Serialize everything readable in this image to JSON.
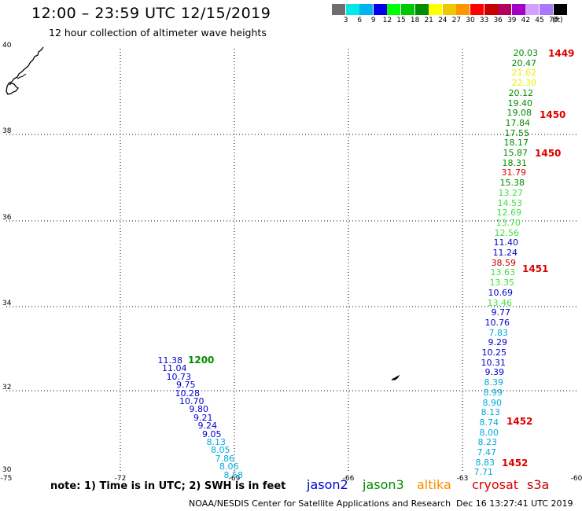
{
  "header": {
    "title": "12:00 – 23:59 UTC 12/15/2019",
    "subtitle": "12 hour collection of altimeter wave heights"
  },
  "colorbar": {
    "labels": [
      "3",
      "6",
      "9",
      "12",
      "15",
      "18",
      "21",
      "24",
      "27",
      "30",
      "33",
      "36",
      "39",
      "42",
      "45",
      "70"
    ],
    "unit": "(ft)",
    "colors": [
      "#6e6e6e",
      "#00e8e8",
      "#00b4f0",
      "#0000e8",
      "#00ff00",
      "#00c800",
      "#008c00",
      "#ffff00",
      "#f0c800",
      "#ff9600",
      "#ff0000",
      "#c80000",
      "#b4005a",
      "#a000c8",
      "#d2a0ff",
      "#aa78ff",
      "#000000"
    ]
  },
  "axes": {
    "lon_ticks": [
      "-75",
      "-72",
      "-69",
      "-66",
      "-63",
      "-60"
    ],
    "lat_ticks": [
      "40",
      "38",
      "36",
      "34",
      "32",
      "30"
    ]
  },
  "series_colors": {
    "jason2": "#0000cc",
    "jason3": "#008c00",
    "altika": "#ff8c00",
    "cryosat": "#dd0000",
    "s3a": "#c00000",
    "cyan": "#00aadd",
    "lime": "#44dd44",
    "yellow": "#eeee00"
  },
  "west_track": {
    "time_label": "1200",
    "values": [
      {
        "v": "11.38",
        "c": "jason2"
      },
      {
        "v": "11.04",
        "c": "jason2"
      },
      {
        "v": "10.73",
        "c": "jason2"
      },
      {
        "v": "9.75",
        "c": "jason2"
      },
      {
        "v": "10.28",
        "c": "jason2"
      },
      {
        "v": "10.70",
        "c": "jason2"
      },
      {
        "v": "9.80",
        "c": "jason2"
      },
      {
        "v": "9.21",
        "c": "jason2"
      },
      {
        "v": "9.24",
        "c": "jason2"
      },
      {
        "v": "9.05",
        "c": "jason2"
      },
      {
        "v": "8.13",
        "c": "cyan"
      },
      {
        "v": "8.05",
        "c": "cyan"
      },
      {
        "v": "7.86",
        "c": "cyan"
      },
      {
        "v": "8.06",
        "c": "cyan"
      },
      {
        "v": "8.58",
        "c": "cyan"
      }
    ]
  },
  "east_track": {
    "values": [
      {
        "v": "20.03",
        "c": "jason3"
      },
      {
        "v": "20.47",
        "c": "jason3"
      },
      {
        "v": "21.62",
        "c": "yellow"
      },
      {
        "v": "22.30",
        "c": "yellow"
      },
      {
        "v": "20.12",
        "c": "jason3"
      },
      {
        "v": "19.40",
        "c": "jason3"
      },
      {
        "v": "19.08",
        "c": "jason3"
      },
      {
        "v": "17.84",
        "c": "jason3"
      },
      {
        "v": "17.55",
        "c": "jason3"
      },
      {
        "v": "18.17",
        "c": "jason3"
      },
      {
        "v": "15.87",
        "c": "jason3"
      },
      {
        "v": "18.31",
        "c": "jason3"
      },
      {
        "v": "31.79",
        "c": "cryosat"
      },
      {
        "v": "15.38",
        "c": "jason3"
      },
      {
        "v": "13.27",
        "c": "lime"
      },
      {
        "v": "14.53",
        "c": "lime"
      },
      {
        "v": "12.69",
        "c": "lime"
      },
      {
        "v": "13.70",
        "c": "lime"
      },
      {
        "v": "12.56",
        "c": "lime"
      },
      {
        "v": "11.40",
        "c": "jason2"
      },
      {
        "v": "11.24",
        "c": "jason2"
      },
      {
        "v": "38.59",
        "c": "s3a"
      },
      {
        "v": "13.63",
        "c": "lime"
      },
      {
        "v": "13.35",
        "c": "lime"
      },
      {
        "v": "10.69",
        "c": "jason2"
      },
      {
        "v": "13.46",
        "c": "lime"
      },
      {
        "v": "9.77",
        "c": "jason2"
      },
      {
        "v": "10.76",
        "c": "jason2"
      },
      {
        "v": "7.83",
        "c": "cyan"
      },
      {
        "v": "9.29",
        "c": "jason2"
      },
      {
        "v": "10.25",
        "c": "jason2"
      },
      {
        "v": "10.31",
        "c": "jason2"
      },
      {
        "v": "9.39",
        "c": "jason2"
      },
      {
        "v": "8.39",
        "c": "cyan"
      },
      {
        "v": "8.99",
        "c": "cyan"
      },
      {
        "v": "8.90",
        "c": "cyan"
      },
      {
        "v": "8.13",
        "c": "cyan"
      },
      {
        "v": "8.74",
        "c": "cyan"
      },
      {
        "v": "8.00",
        "c": "cyan"
      },
      {
        "v": "8.23",
        "c": "cyan"
      },
      {
        "v": "7.47",
        "c": "cyan"
      },
      {
        "v": "8.83",
        "c": "cyan"
      },
      {
        "v": "7.71",
        "c": "cyan"
      }
    ],
    "time_labels": [
      "1449",
      "1450",
      "1450",
      "1451",
      "1452",
      "1452"
    ]
  },
  "legend": {
    "note": "note: 1) Time is in UTC; 2) SWH is in feet",
    "jason2": "jason2",
    "jason3": "jason3",
    "altika": "altika",
    "cryosat": "cryosat",
    "s3a": "s3a"
  },
  "footer": {
    "credit": "NOAA/NESDIS Center for Satellite Applications and Research",
    "timestamp": "Dec 16 13:27:41 UTC 2019"
  }
}
